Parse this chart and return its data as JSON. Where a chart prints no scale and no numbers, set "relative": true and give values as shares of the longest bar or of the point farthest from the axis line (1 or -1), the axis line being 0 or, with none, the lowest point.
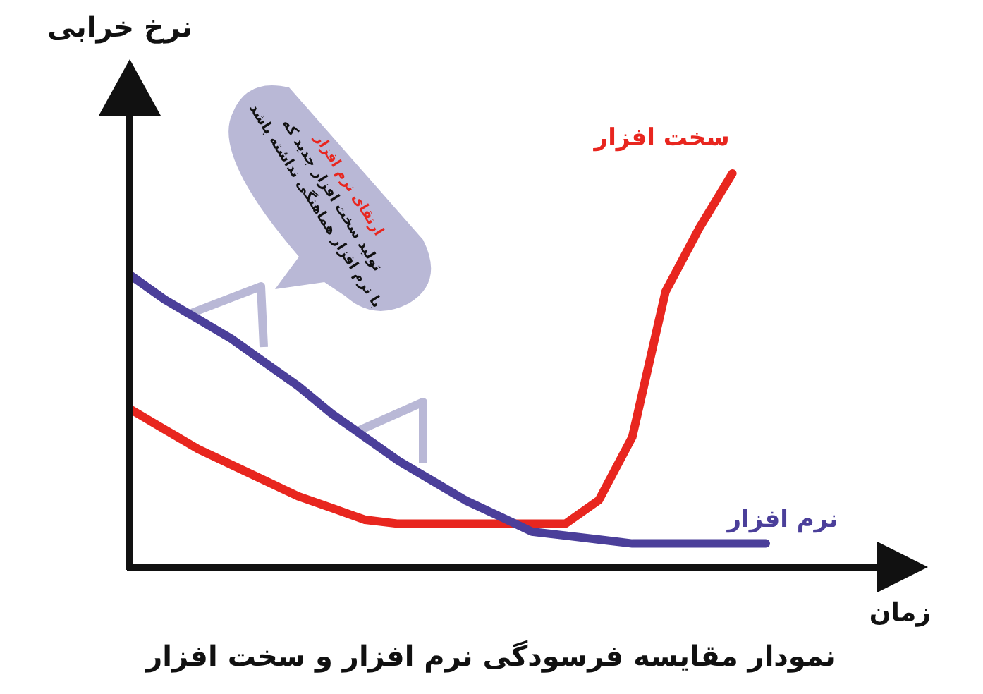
{
  "chart_data": {
    "type": "line",
    "relative": true,
    "ylabel": "نرخ خرابی",
    "xlabel": "زمان",
    "title": "نمودار مقایسه فرسودگی نرم افزار و سخت افزار",
    "legend": false,
    "grid": false,
    "categories": [
      null,
      null,
      null,
      null,
      null,
      null,
      null,
      null,
      null,
      null,
      null,
      null,
      null,
      null,
      null,
      null,
      null,
      null,
      null,
      null
    ],
    "series": [
      {
        "name": "سخت افزار",
        "color": "#e8261f",
        "values": [
          0.4,
          0.35,
          0.3,
          0.26,
          0.22,
          0.18,
          0.15,
          0.12,
          0.11,
          0.11,
          0.11,
          0.11,
          0.11,
          0.11,
          0.17,
          0.33,
          0.7,
          0.86,
          1.0,
          null
        ]
      },
      {
        "name": "نرم افزار",
        "color": "#4b3f9a",
        "values": [
          0.74,
          0.68,
          0.63,
          0.58,
          0.52,
          0.46,
          0.39,
          0.33,
          0.27,
          0.22,
          0.17,
          0.13,
          0.09,
          0.08,
          0.07,
          0.06,
          0.06,
          0.06,
          0.06,
          0.06
        ]
      }
    ],
    "annotations": [
      "ارتقای نرم افزار",
      "تولید سخت افزار جدید که",
      "با نرم افزار هماهنگی نداشته باشد"
    ]
  }
}
